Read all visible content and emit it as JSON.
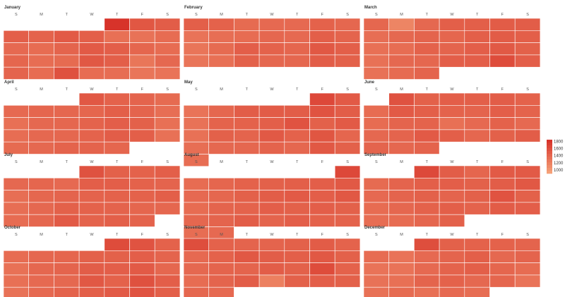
{
  "chart_data": {
    "type": "heatmap",
    "layout": "calendar",
    "weekdays": [
      "S",
      "M",
      "T",
      "W",
      "T",
      "F",
      "S"
    ],
    "color_scale": {
      "low": "#f6a57b",
      "high": "#d62f27",
      "min": 900,
      "max": 1850
    },
    "legend": {
      "position": "right",
      "ticks": [
        1800,
        1600,
        1400,
        1200,
        1000
      ]
    },
    "months": [
      {
        "name": "January",
        "start_weekday": 4,
        "values": [
          1820,
          1530,
          1480,
          1460,
          1430,
          1500,
          1460,
          1330,
          1310,
          1360,
          1380,
          1360,
          1420,
          1500,
          1470,
          1410,
          1360,
          1410,
          1350,
          1370,
          1520,
          1460,
          1280,
          1390,
          1420,
          1360,
          1580,
          1360,
          1350,
          1290,
          1300
        ]
      },
      {
        "name": "February",
        "start_weekday": 0,
        "values": [
          1460,
          1440,
          1370,
          1380,
          1380,
          1440,
          1400,
          1300,
          1340,
          1360,
          1400,
          1380,
          1460,
          1420,
          1290,
          1370,
          1470,
          1440,
          1410,
          1520,
          1460,
          1290,
          1330,
          1450,
          1400,
          1400,
          1480,
          1450
        ]
      },
      {
        "name": "March",
        "start_weekday": 0,
        "values": [
          1400,
          1160,
          1390,
          1460,
          1460,
          1490,
          1480,
          1340,
          1390,
          1420,
          1410,
          1460,
          1490,
          1460,
          1330,
          1350,
          1440,
          1420,
          1470,
          1510,
          1450,
          1320,
          1390,
          1400,
          1470,
          1470,
          1620,
          1470,
          1320,
          1370,
          1420
        ]
      },
      {
        "name": "April",
        "start_weekday": 3,
        "values": [
          1520,
          1440,
          1420,
          1370,
          1380,
          1410,
          1400,
          1410,
          1460,
          1420,
          1340,
          1330,
          1390,
          1400,
          1430,
          1470,
          1450,
          1330,
          1350,
          1390,
          1400,
          1430,
          1480,
          1460,
          1320,
          1370,
          1390,
          1430,
          1430,
          1410
        ]
      },
      {
        "name": "May",
        "start_weekday": 5,
        "values": [
          1650,
          1500,
          1300,
          1400,
          1480,
          1490,
          1480,
          1560,
          1480,
          1310,
          1430,
          1440,
          1460,
          1560,
          1450,
          1500,
          1320,
          1450,
          1420,
          1510,
          1440,
          1540,
          1410,
          1340,
          1390,
          1400,
          1430,
          1400,
          1520,
          1450,
          1350
        ]
      },
      {
        "name": "June",
        "start_weekday": 1,
        "values": [
          1570,
          1450,
          1470,
          1460,
          1480,
          1440,
          1360,
          1500,
          1460,
          1430,
          1420,
          1470,
          1430,
          1360,
          1420,
          1430,
          1330,
          1380,
          1440,
          1380,
          1390,
          1420,
          1500,
          1460,
          1400,
          1450,
          1480,
          1420,
          1400,
          1430
        ]
      },
      {
        "name": "July",
        "start_weekday": 3,
        "values": [
          1570,
          1450,
          1440,
          1460,
          1390,
          1410,
          1380,
          1470,
          1470,
          1440,
          1420,
          1340,
          1400,
          1420,
          1430,
          1440,
          1440,
          1460,
          1340,
          1390,
          1450,
          1440,
          1430,
          1410,
          1400,
          1360,
          1400,
          1500,
          1430,
          1460,
          1430
        ]
      },
      {
        "name": "August",
        "start_weekday": 6,
        "values": [
          1650,
          1360,
          1410,
          1440,
          1450,
          1460,
          1470,
          1510,
          1380,
          1400,
          1450,
          1480,
          1500,
          1470,
          1520,
          1360,
          1420,
          1430,
          1470,
          1450,
          1470,
          1450,
          1400,
          1420,
          1480,
          1420,
          1470,
          1440,
          1430,
          1350,
          1380
        ]
      },
      {
        "name": "September",
        "start_weekday": 2,
        "values": [
          1640,
          1480,
          1410,
          1500,
          1500,
          1370,
          1420,
          1460,
          1470,
          1450,
          1480,
          1520,
          1380,
          1420,
          1450,
          1420,
          1450,
          1560,
          1450,
          1360,
          1400,
          1440,
          1460,
          1430,
          1490,
          1470,
          1350,
          1360,
          1410,
          1450
        ]
      },
      {
        "name": "October",
        "start_weekday": 4,
        "values": [
          1620,
          1560,
          1440,
          1360,
          1400,
          1410,
          1450,
          1450,
          1470,
          1420,
          1320,
          1400,
          1420,
          1480,
          1470,
          1500,
          1400,
          1330,
          1380,
          1390,
          1520,
          1440,
          1580,
          1470,
          1310,
          1380,
          1430,
          1460,
          1500,
          1560,
          1460
        ]
      },
      {
        "name": "November",
        "start_weekday": 0,
        "values": [
          1600,
          1440,
          1420,
          1420,
          1450,
          1490,
          1430,
          1380,
          1440,
          1520,
          1480,
          1460,
          1520,
          1450,
          1390,
          1420,
          1420,
          1480,
          1450,
          1620,
          1440,
          1360,
          1420,
          1480,
          1200,
          1450,
          1470,
          1450,
          1400,
          1380
        ]
      },
      {
        "name": "December",
        "start_weekday": 2,
        "values": [
          1600,
          1450,
          1440,
          1440,
          1420,
          1360,
          1300,
          1380,
          1420,
          1460,
          1390,
          1420,
          1300,
          1300,
          1380,
          1430,
          1460,
          1410,
          1360,
          1310,
          1330,
          1420,
          1440,
          1390,
          1410,
          1300,
          1320,
          1370,
          1330,
          1380,
          1350
        ]
      }
    ]
  }
}
